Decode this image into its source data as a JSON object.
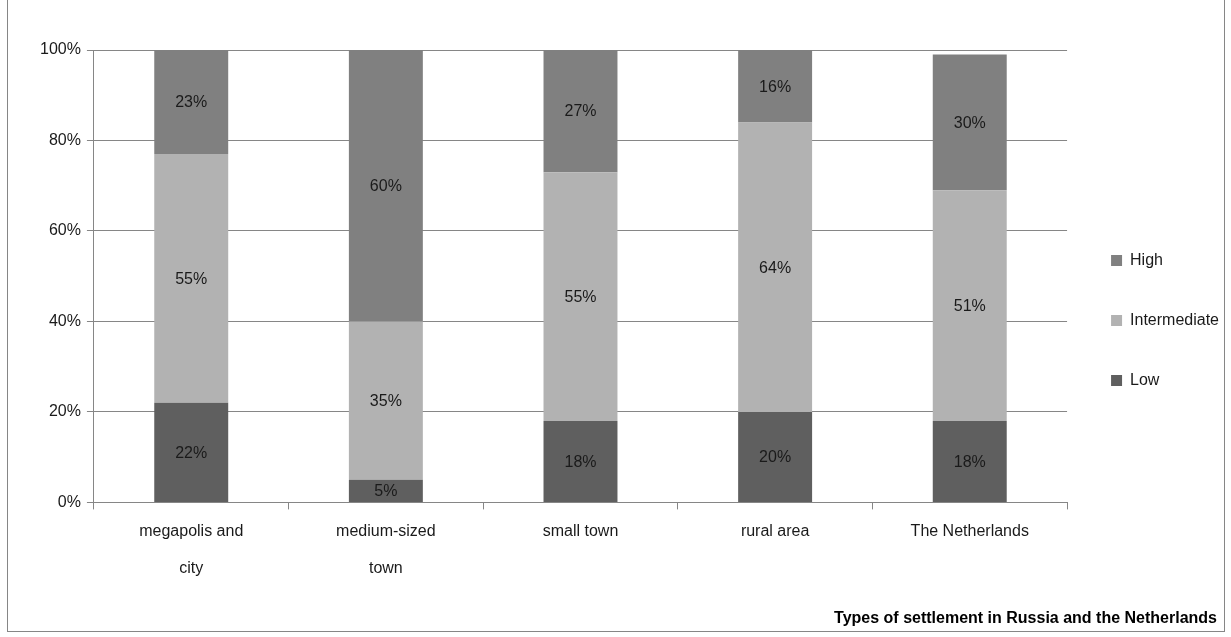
{
  "chart_data": {
    "type": "bar",
    "stacked": true,
    "categories": [
      "megapolis and city",
      "medium-sized town",
      "small town",
      "rural area",
      "The Netherlands"
    ],
    "series": [
      {
        "name": "Low",
        "color": "#5f5f5f",
        "values": [
          22,
          5,
          18,
          20,
          18
        ],
        "value_labels": [
          "22%",
          "5%",
          "18%",
          "20%",
          "18%"
        ]
      },
      {
        "name": "Intermediate",
        "color": "#b2b2b2",
        "values": [
          55,
          35,
          55,
          64,
          51
        ],
        "value_labels": [
          "55%",
          "35%",
          "55%",
          "64%",
          "51%"
        ]
      },
      {
        "name": "High",
        "color": "#808080",
        "values": [
          23,
          60,
          27,
          16,
          30
        ],
        "value_labels": [
          "23%",
          "60%",
          "27%",
          "16%",
          "30%"
        ]
      }
    ],
    "ylim": [
      0,
      100
    ],
    "yticks": [
      {
        "value": 0,
        "label": "0%"
      },
      {
        "value": 20,
        "label": "20%"
      },
      {
        "value": 40,
        "label": "40%"
      },
      {
        "value": 60,
        "label": "60%"
      },
      {
        "value": 80,
        "label": "80%"
      },
      {
        "value": 100,
        "label": "100%"
      }
    ],
    "xlabel": "Types of settlement in Russia and the Netherlands",
    "grid": "y",
    "legend": "right"
  }
}
